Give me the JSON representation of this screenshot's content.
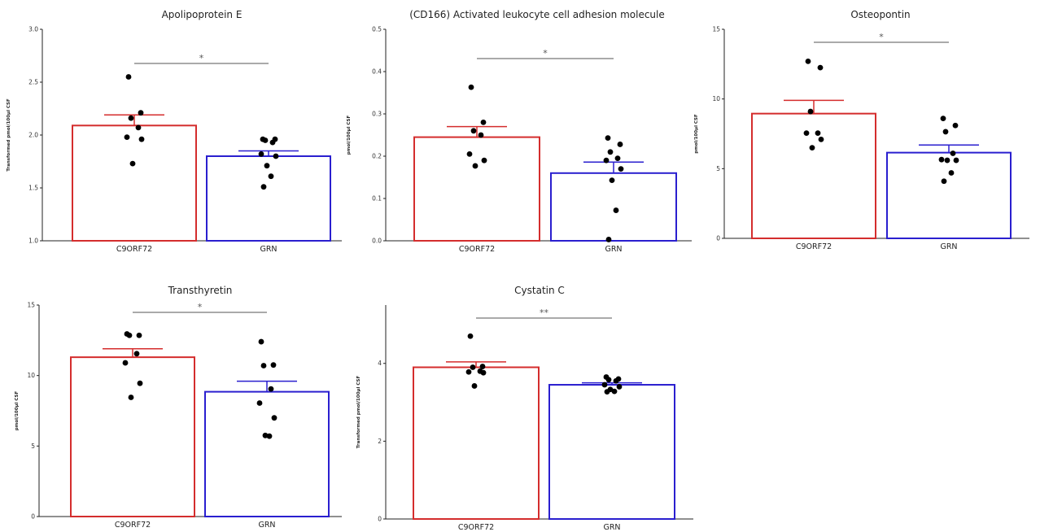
{
  "chart_data": [
    {
      "type": "bar",
      "title": "Apolipoprotein E",
      "ylabel": "Transformed pmol/100µl CSF",
      "ylim": [
        1.0,
        3.0
      ],
      "yticks": [
        "1.0",
        "1.5",
        "2.0",
        "2.5",
        "3.0"
      ],
      "categories": [
        "C9ORF72",
        "GRN"
      ],
      "values": [
        2.09,
        1.8
      ],
      "errors": [
        0.1,
        0.05
      ],
      "points": [
        [
          2.55,
          2.21,
          2.16,
          2.07,
          1.98,
          1.96,
          1.73
        ],
        [
          1.96,
          1.96,
          1.95,
          1.93,
          1.82,
          1.8,
          1.71,
          1.61,
          1.51
        ]
      ],
      "significance": "*",
      "colors": [
        "#d42d2d",
        "#2a1fcf"
      ]
    },
    {
      "type": "bar",
      "title": "(CD166) Activated leukocyte cell adhesion molecule",
      "ylabel": "pmol/100µl CSF",
      "ylim": [
        0.0,
        0.5
      ],
      "yticks": [
        "0.0",
        "0.1",
        "0.2",
        "0.3",
        "0.4",
        "0.5"
      ],
      "categories": [
        "C9ORF72",
        "GRN"
      ],
      "values": [
        0.245,
        0.16
      ],
      "errors": [
        0.025,
        0.026
      ],
      "points": [
        [
          0.363,
          0.28,
          0.26,
          0.25,
          0.205,
          0.19,
          0.177
        ],
        [
          0.243,
          0.228,
          0.21,
          0.195,
          0.19,
          0.17,
          0.143,
          0.072,
          0.003
        ]
      ],
      "significance": "*",
      "colors": [
        "#d42d2d",
        "#2a1fcf"
      ]
    },
    {
      "type": "bar",
      "title": "Osteopontin",
      "ylabel": "pmol/100µl CSF",
      "ylim": [
        0,
        15
      ],
      "yticks": [
        "0",
        "5",
        "10",
        "15"
      ],
      "categories": [
        "C9ORF72",
        "GRN"
      ],
      "values": [
        8.95,
        6.15
      ],
      "errors": [
        0.95,
        0.55
      ],
      "points": [
        [
          12.7,
          12.25,
          9.1,
          7.55,
          7.55,
          7.1,
          6.5
        ],
        [
          8.6,
          8.1,
          7.65,
          6.1,
          5.65,
          5.6,
          5.6,
          4.7,
          4.1
        ]
      ],
      "significance": "*",
      "colors": [
        "#d42d2d",
        "#2a1fcf"
      ]
    },
    {
      "type": "bar",
      "title": "Transthyretin",
      "ylabel": "pmol/100µl CSF",
      "ylim": [
        0,
        15
      ],
      "yticks": [
        "0",
        "5",
        "10",
        "15"
      ],
      "categories": [
        "C9ORF72",
        "GRN"
      ],
      "values": [
        11.3,
        8.85
      ],
      "errors": [
        0.6,
        0.75
      ],
      "points": [
        [
          12.95,
          12.85,
          12.85,
          11.55,
          10.9,
          9.45,
          8.45
        ],
        [
          12.4,
          10.75,
          10.7,
          9.05,
          8.05,
          7.0,
          5.75,
          5.7
        ]
      ],
      "significance": "*",
      "colors": [
        "#d42d2d",
        "#2a1fcf"
      ]
    },
    {
      "type": "bar",
      "title": "Cystatin C",
      "ylabel": "Transformed pmol/100µl CSF",
      "ylim": [
        0,
        5.5
      ],
      "yticks": [
        "0",
        "2",
        "4"
      ],
      "categories": [
        "C9ORF72",
        "GRN"
      ],
      "values": [
        3.9,
        3.45
      ],
      "errors": [
        0.14,
        0.05
      ],
      "points": [
        [
          4.7,
          3.92,
          3.9,
          3.8,
          3.78,
          3.76,
          3.42
        ],
        [
          3.65,
          3.6,
          3.58,
          3.55,
          3.45,
          3.4,
          3.33,
          3.28,
          3.27
        ]
      ],
      "significance": "**",
      "colors": [
        "#d42d2d",
        "#2a1fcf"
      ]
    }
  ]
}
